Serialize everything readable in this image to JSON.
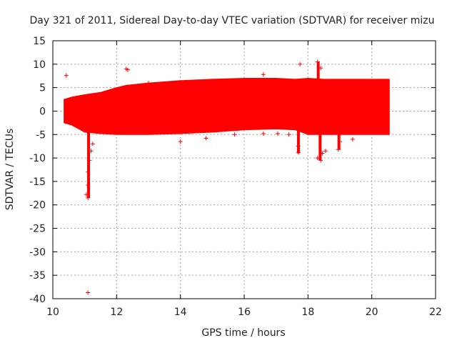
{
  "chart_data": {
    "type": "scatter",
    "title": "Day 321 of 2011, Sidereal Day-to-day VTEC variation (SDTVAR) for receiver mizu",
    "xlabel": "GPS time / hours",
    "ylabel": "SDTVAR / TECUs",
    "xlim": [
      10,
      22
    ],
    "ylim": [
      -40,
      15
    ],
    "x_ticks": [
      10,
      12,
      14,
      16,
      18,
      20,
      22
    ],
    "x_tick_labels": [
      "10",
      "12",
      "14",
      "16",
      "18",
      "20",
      "22"
    ],
    "y_ticks": [
      15,
      10,
      5,
      0,
      -5,
      -10,
      -15,
      -20,
      -25,
      -30,
      -35,
      -40
    ],
    "y_tick_labels": [
      "15",
      "10",
      "5",
      "0",
      "-5",
      "-10",
      "-15",
      "-20",
      "-25",
      "-30",
      "-35",
      "-40"
    ],
    "grid": true,
    "marker": "+",
    "color": "#ff0000",
    "band": {
      "x": [
        10.35,
        10.6,
        11.0,
        11.5,
        12.0,
        12.3,
        13.0,
        14.0,
        15.0,
        16.0,
        17.0,
        17.6,
        18.0,
        18.5,
        19.0,
        19.5,
        20.0,
        20.55
      ],
      "upper": [
        2.5,
        3.0,
        3.5,
        4.0,
        5.0,
        5.5,
        6.0,
        6.5,
        6.8,
        7.0,
        7.0,
        6.8,
        7.0,
        6.8,
        6.8,
        6.8,
        6.8,
        6.8
      ],
      "lower": [
        -2.5,
        -3.0,
        -4.5,
        -4.8,
        -5.0,
        -5.0,
        -5.0,
        -4.8,
        -4.5,
        -4.0,
        -3.8,
        -4.0,
        -5.0,
        -5.0,
        -5.0,
        -5.0,
        -5.0,
        -5.0
      ]
    },
    "points": [
      {
        "x": 10.42,
        "y": 7.6
      },
      {
        "x": 12.3,
        "y": 9.0
      },
      {
        "x": 12.35,
        "y": 8.8
      },
      {
        "x": 13.0,
        "y": 6.0
      },
      {
        "x": 17.75,
        "y": 10.0
      },
      {
        "x": 18.3,
        "y": 10.5
      },
      {
        "x": 18.4,
        "y": 9.2
      },
      {
        "x": 16.6,
        "y": 7.8
      },
      {
        "x": 11.1,
        "y": -38.7
      },
      {
        "x": 11.1,
        "y": -18.5
      },
      {
        "x": 11.05,
        "y": -17.8
      },
      {
        "x": 11.1,
        "y": -15.8
      },
      {
        "x": 11.1,
        "y": -13.0
      },
      {
        "x": 11.15,
        "y": -10.5
      },
      {
        "x": 11.2,
        "y": -8.5
      },
      {
        "x": 11.25,
        "y": -7.0
      },
      {
        "x": 14.0,
        "y": -6.5
      },
      {
        "x": 14.8,
        "y": -5.8
      },
      {
        "x": 15.7,
        "y": -5.0
      },
      {
        "x": 16.6,
        "y": -4.8
      },
      {
        "x": 17.05,
        "y": -4.8
      },
      {
        "x": 17.4,
        "y": -5.0
      },
      {
        "x": 17.7,
        "y": -8.8
      },
      {
        "x": 17.7,
        "y": -7.5
      },
      {
        "x": 18.3,
        "y": -10.0
      },
      {
        "x": 18.4,
        "y": -10.5
      },
      {
        "x": 18.45,
        "y": -9.0
      },
      {
        "x": 18.55,
        "y": -8.5
      },
      {
        "x": 18.95,
        "y": -8.2
      },
      {
        "x": 19.0,
        "y": -6.5
      },
      {
        "x": 19.4,
        "y": -6.0
      }
    ],
    "spikes": [
      {
        "x": 11.12,
        "ymin": -18.5,
        "ymax": -4.5
      },
      {
        "x": 17.7,
        "ymin": -9.0,
        "ymax": -3.8
      },
      {
        "x": 18.38,
        "ymin": -10.5,
        "ymax": -4.5
      },
      {
        "x": 18.97,
        "ymin": -8.2,
        "ymax": -4.8
      },
      {
        "x": 18.32,
        "ymin": 6.8,
        "ymax": 10.5
      }
    ]
  }
}
